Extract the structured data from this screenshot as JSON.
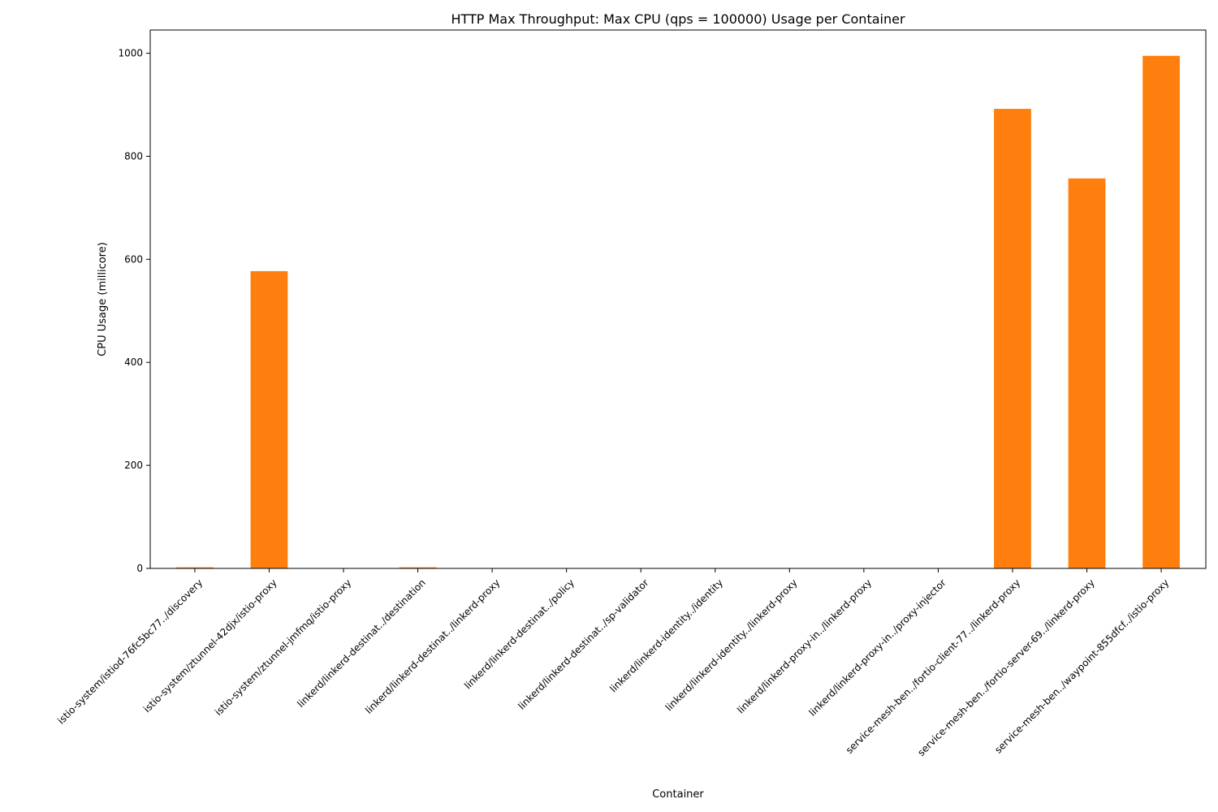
{
  "chart_data": {
    "type": "bar",
    "title": "HTTP Max Throughput: Max CPU (qps = 100000) Usage per Container",
    "xlabel": "Container",
    "ylabel": "CPU Usage (millicore)",
    "ylim": [
      0,
      1045
    ],
    "yticks": [
      0,
      200,
      400,
      600,
      800,
      1000
    ],
    "bar_color": "#ff7f0e",
    "grid": false,
    "categories": [
      "istio-system/istiod-76fc5bc77../discovery",
      "istio-system/ztunnel-42djx/istio-proxy",
      "istio-system/ztunnel-jmfmq/istio-proxy",
      "linkerd/linkerd-destinat../destination",
      "linkerd/linkerd-destinat../linkerd-proxy",
      "linkerd/linkerd-destinat../policy",
      "linkerd/linkerd-destinat../sp-validator",
      "linkerd/linkerd-identity../identity",
      "linkerd/linkerd-identity../linkerd-proxy",
      "linkerd/linkerd-proxy-in../linkerd-proxy",
      "linkerd/linkerd-proxy-in../proxy-injector",
      "service-mesh-ben../fortio-client-77../linkerd-proxy",
      "service-mesh-ben../fortio-server-69../linkerd-proxy",
      "service-mesh-ben../waypoint-855dfcf../istio-proxy"
    ],
    "values": [
      2,
      577,
      0.5,
      2,
      0.3,
      0.2,
      0.2,
      0.3,
      0.3,
      0.3,
      0.3,
      892,
      757,
      995
    ]
  }
}
